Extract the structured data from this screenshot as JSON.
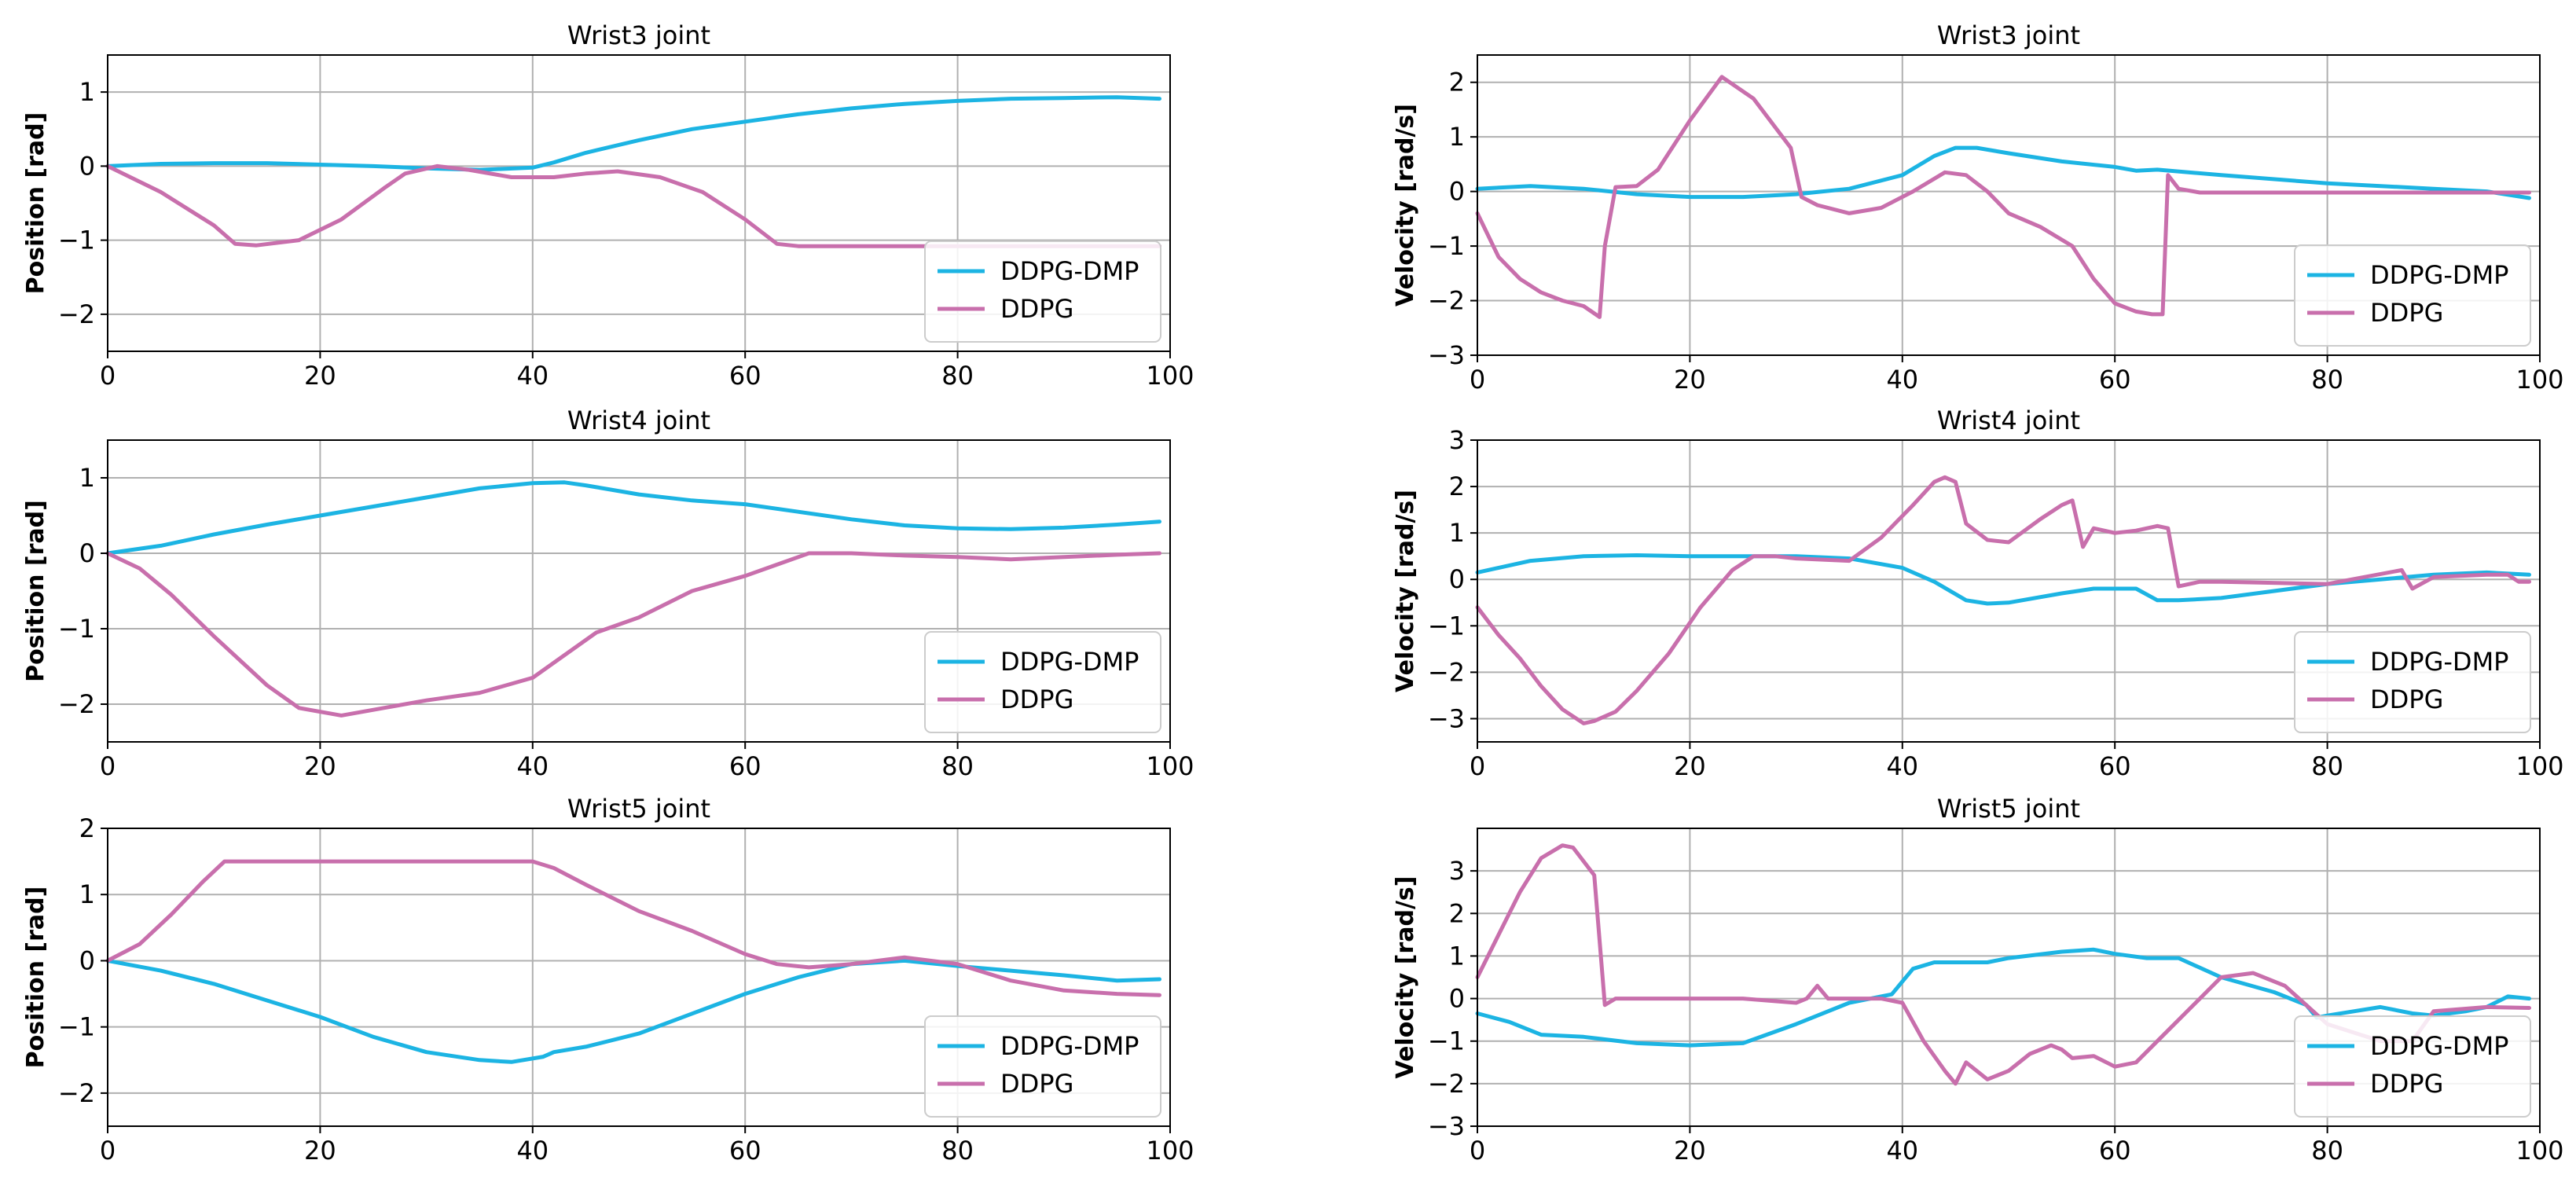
{
  "figure": {
    "series_colors": {
      "DDPG-DMP": "#1cb4e3",
      "DDPG": "#c86fac"
    },
    "grid_color": "#b0b0b0"
  },
  "chart_data": [
    {
      "type": "line",
      "title": "Wrist3 joint",
      "xlabel": "",
      "ylabel": "Position [rad]",
      "xlim": [
        0,
        100
      ],
      "ylim": [
        -2.5,
        1.5
      ],
      "xticks": [
        0,
        20,
        40,
        60,
        80,
        100
      ],
      "yticks": [
        -2,
        -1,
        0,
        1
      ],
      "grid": true,
      "legend": "lower right",
      "series": [
        {
          "name": "DDPG-DMP",
          "color": "#1cb4e3",
          "x": [
            0,
            5,
            10,
            15,
            20,
            25,
            30,
            35,
            40,
            42,
            45,
            50,
            55,
            60,
            65,
            70,
            75,
            80,
            85,
            90,
            95,
            99
          ],
          "y": [
            0,
            0.03,
            0.04,
            0.04,
            0.02,
            0,
            -0.03,
            -0.05,
            -0.02,
            0.05,
            0.18,
            0.35,
            0.5,
            0.6,
            0.7,
            0.78,
            0.84,
            0.88,
            0.91,
            0.92,
            0.93,
            0.91
          ]
        },
        {
          "name": "DDPG",
          "color": "#c86fac",
          "x": [
            0,
            5,
            10,
            12,
            14,
            18,
            22,
            26,
            28,
            31,
            34,
            38,
            42,
            45,
            48,
            52,
            56,
            60,
            63,
            65,
            70,
            80,
            90,
            99
          ],
          "y": [
            0,
            -0.35,
            -0.8,
            -1.05,
            -1.07,
            -1.0,
            -0.72,
            -0.3,
            -0.1,
            0.0,
            -0.05,
            -0.15,
            -0.15,
            -0.1,
            -0.07,
            -0.15,
            -0.35,
            -0.72,
            -1.05,
            -1.08,
            -1.08,
            -1.08,
            -1.08,
            -1.08
          ]
        }
      ]
    },
    {
      "type": "line",
      "title": "Wrist3 joint",
      "xlabel": "",
      "ylabel": "Velocity [rad/s]",
      "xlim": [
        0,
        100
      ],
      "ylim": [
        -3,
        2.5
      ],
      "xticks": [
        0,
        20,
        40,
        60,
        80,
        100
      ],
      "yticks": [
        -3,
        -2,
        -1,
        0,
        1,
        2
      ],
      "grid": true,
      "legend": "lower right",
      "series": [
        {
          "name": "DDPG-DMP",
          "color": "#1cb4e3",
          "x": [
            0,
            5,
            10,
            15,
            20,
            25,
            30,
            35,
            40,
            43,
            45,
            47,
            50,
            55,
            60,
            62,
            64,
            70,
            80,
            90,
            95,
            99
          ],
          "y": [
            0.05,
            0.1,
            0.05,
            -0.05,
            -0.1,
            -0.1,
            -0.05,
            0.05,
            0.3,
            0.65,
            0.8,
            0.8,
            0.7,
            0.55,
            0.45,
            0.38,
            0.4,
            0.3,
            0.15,
            0.05,
            0.0,
            -0.12
          ]
        },
        {
          "name": "DDPG",
          "color": "#c86fac",
          "x": [
            0,
            2,
            4,
            6,
            8,
            10,
            11.5,
            12,
            13,
            15,
            17,
            20,
            23,
            26,
            29.5,
            30.5,
            32,
            35,
            38,
            41,
            44,
            46,
            48,
            50,
            53,
            56,
            58,
            60,
            62,
            63.5,
            64.5,
            65,
            66,
            68,
            70,
            80,
            90,
            99
          ],
          "y": [
            -0.4,
            -1.2,
            -1.6,
            -1.85,
            -2.0,
            -2.1,
            -2.3,
            -1.0,
            0.08,
            0.1,
            0.4,
            1.3,
            2.1,
            1.7,
            0.8,
            -0.1,
            -0.25,
            -0.4,
            -0.3,
            0.0,
            0.35,
            0.3,
            0.0,
            -0.4,
            -0.65,
            -1.0,
            -1.6,
            -2.05,
            -2.2,
            -2.25,
            -2.25,
            0.3,
            0.05,
            -0.02,
            -0.02,
            -0.02,
            -0.02,
            -0.02
          ]
        }
      ]
    },
    {
      "type": "line",
      "title": "Wrist4 joint",
      "xlabel": "",
      "ylabel": "Position [rad]",
      "xlim": [
        0,
        100
      ],
      "ylim": [
        -2.5,
        1.5
      ],
      "xticks": [
        0,
        20,
        40,
        60,
        80,
        100
      ],
      "yticks": [
        -2,
        -1,
        0,
        1
      ],
      "grid": true,
      "legend": "lower right",
      "series": [
        {
          "name": "DDPG-DMP",
          "color": "#1cb4e3",
          "x": [
            0,
            5,
            10,
            15,
            20,
            25,
            30,
            35,
            40,
            43,
            45,
            50,
            55,
            60,
            65,
            70,
            75,
            80,
            85,
            90,
            95,
            99
          ],
          "y": [
            0,
            0.1,
            0.25,
            0.38,
            0.5,
            0.62,
            0.74,
            0.86,
            0.93,
            0.94,
            0.9,
            0.78,
            0.7,
            0.65,
            0.55,
            0.45,
            0.37,
            0.33,
            0.32,
            0.34,
            0.38,
            0.42
          ]
        },
        {
          "name": "DDPG",
          "color": "#c86fac",
          "x": [
            0,
            3,
            6,
            10,
            15,
            18,
            22,
            26,
            30,
            35,
            40,
            43,
            46,
            50,
            55,
            60,
            63,
            66,
            70,
            75,
            80,
            85,
            90,
            95,
            99
          ],
          "y": [
            0,
            -0.2,
            -0.55,
            -1.1,
            -1.75,
            -2.05,
            -2.15,
            -2.05,
            -1.95,
            -1.85,
            -1.65,
            -1.35,
            -1.05,
            -0.85,
            -0.5,
            -0.3,
            -0.15,
            0.0,
            0.0,
            -0.03,
            -0.05,
            -0.08,
            -0.05,
            -0.02,
            0.0
          ]
        }
      ]
    },
    {
      "type": "line",
      "title": "Wrist4 joint",
      "xlabel": "",
      "ylabel": "Velocity [rad/s]",
      "xlim": [
        0,
        100
      ],
      "ylim": [
        -3.5,
        3
      ],
      "xticks": [
        0,
        20,
        40,
        60,
        80,
        100
      ],
      "yticks": [
        -3,
        -2,
        -1,
        0,
        1,
        2,
        3
      ],
      "grid": true,
      "legend": "lower right",
      "series": [
        {
          "name": "DDPG-DMP",
          "color": "#1cb4e3",
          "x": [
            0,
            5,
            10,
            15,
            20,
            25,
            30,
            35,
            40,
            43,
            46,
            48,
            50,
            55,
            58,
            60,
            62,
            64,
            66,
            70,
            80,
            85,
            90,
            95,
            99
          ],
          "y": [
            0.15,
            0.4,
            0.5,
            0.52,
            0.5,
            0.5,
            0.5,
            0.45,
            0.25,
            -0.05,
            -0.45,
            -0.52,
            -0.5,
            -0.3,
            -0.2,
            -0.2,
            -0.2,
            -0.45,
            -0.45,
            -0.4,
            -0.1,
            0.0,
            0.1,
            0.15,
            0.1
          ]
        },
        {
          "name": "DDPG",
          "color": "#c86fac",
          "x": [
            0,
            2,
            4,
            6,
            8,
            10,
            11,
            13,
            15,
            18,
            21,
            24,
            26,
            28,
            30,
            35,
            38,
            41,
            43,
            44,
            45,
            46,
            48,
            50,
            53,
            55,
            56,
            57,
            58,
            60,
            62,
            64,
            65,
            66,
            68,
            70,
            80,
            87,
            88,
            90,
            95,
            97,
            98,
            99
          ],
          "y": [
            -0.6,
            -1.2,
            -1.7,
            -2.3,
            -2.8,
            -3.1,
            -3.05,
            -2.85,
            -2.4,
            -1.6,
            -0.6,
            0.2,
            0.5,
            0.5,
            0.45,
            0.4,
            0.9,
            1.6,
            2.1,
            2.2,
            2.1,
            1.2,
            0.85,
            0.8,
            1.3,
            1.6,
            1.7,
            0.7,
            1.1,
            1.0,
            1.05,
            1.15,
            1.1,
            -0.15,
            -0.05,
            -0.05,
            -0.1,
            0.2,
            -0.2,
            0.05,
            0.1,
            0.1,
            -0.05,
            -0.05
          ]
        }
      ]
    },
    {
      "type": "line",
      "title": "Wrist5 joint",
      "xlabel": "",
      "ylabel": "Position [rad]",
      "xlim": [
        0,
        100
      ],
      "ylim": [
        -2.5,
        2
      ],
      "xticks": [
        0,
        20,
        40,
        60,
        80,
        100
      ],
      "yticks": [
        -2,
        -1,
        0,
        1,
        2
      ],
      "grid": true,
      "legend": "lower right",
      "series": [
        {
          "name": "DDPG-DMP",
          "color": "#1cb4e3",
          "x": [
            0,
            5,
            10,
            15,
            20,
            25,
            30,
            35,
            38,
            41,
            42,
            45,
            50,
            55,
            60,
            65,
            70,
            75,
            80,
            85,
            90,
            95,
            99
          ],
          "y": [
            0,
            -0.15,
            -0.35,
            -0.6,
            -0.85,
            -1.15,
            -1.38,
            -1.5,
            -1.53,
            -1.45,
            -1.38,
            -1.3,
            -1.1,
            -0.8,
            -0.5,
            -0.25,
            -0.05,
            0.0,
            -0.08,
            -0.15,
            -0.22,
            -0.3,
            -0.28
          ]
        },
        {
          "name": "DDPG",
          "color": "#c86fac",
          "x": [
            0,
            3,
            6,
            9,
            11,
            13,
            20,
            30,
            35,
            40,
            42,
            45,
            50,
            55,
            60,
            63,
            66,
            70,
            75,
            80,
            85,
            90,
            95,
            99
          ],
          "y": [
            0,
            0.25,
            0.7,
            1.2,
            1.5,
            1.5,
            1.5,
            1.5,
            1.5,
            1.5,
            1.4,
            1.15,
            0.75,
            0.45,
            0.1,
            -0.05,
            -0.1,
            -0.05,
            0.05,
            -0.05,
            -0.3,
            -0.45,
            -0.5,
            -0.52
          ]
        }
      ]
    },
    {
      "type": "line",
      "title": "Wrist5 joint",
      "xlabel": "",
      "ylabel": "Velocity [rad/s]",
      "xlim": [
        0,
        100
      ],
      "ylim": [
        -3,
        4
      ],
      "xticks": [
        0,
        20,
        40,
        60,
        80,
        100
      ],
      "yticks": [
        -3,
        -2,
        -1,
        0,
        1,
        2,
        3
      ],
      "grid": true,
      "legend": "lower right",
      "series": [
        {
          "name": "DDPG-DMP",
          "color": "#1cb4e3",
          "x": [
            0,
            3,
            6,
            10,
            15,
            20,
            25,
            30,
            35,
            39,
            41,
            43,
            45,
            48,
            50,
            55,
            58,
            60,
            63,
            66,
            70,
            75,
            78,
            79,
            80,
            85,
            88,
            90,
            93,
            95,
            97,
            99
          ],
          "y": [
            -0.35,
            -0.55,
            -0.85,
            -0.9,
            -1.05,
            -1.1,
            -1.05,
            -0.6,
            -0.1,
            0.1,
            0.7,
            0.85,
            0.85,
            0.85,
            0.95,
            1.1,
            1.15,
            1.05,
            0.95,
            0.95,
            0.5,
            0.15,
            -0.15,
            -0.45,
            -0.4,
            -0.2,
            -0.35,
            -0.4,
            -0.3,
            -0.2,
            0.05,
            0.0
          ]
        },
        {
          "name": "DDPG",
          "color": "#c86fac",
          "x": [
            0,
            2,
            4,
            6,
            8,
            9,
            11,
            12,
            13,
            15,
            20,
            25,
            30,
            31,
            32,
            33,
            35,
            38,
            40,
            42,
            44,
            45,
            46,
            48,
            50,
            52,
            54,
            55,
            56,
            58,
            60,
            62,
            65,
            68,
            70,
            73,
            76,
            80,
            85,
            88,
            90,
            95,
            99
          ],
          "y": [
            0.5,
            1.5,
            2.5,
            3.3,
            3.6,
            3.55,
            2.9,
            -0.15,
            0.0,
            0.0,
            0.0,
            0.0,
            -0.1,
            0.0,
            0.3,
            0.0,
            0.0,
            0.0,
            -0.1,
            -1.0,
            -1.7,
            -2.0,
            -1.5,
            -1.9,
            -1.7,
            -1.3,
            -1.1,
            -1.2,
            -1.4,
            -1.35,
            -1.6,
            -1.5,
            -0.75,
            0.0,
            0.5,
            0.6,
            0.3,
            -0.6,
            -1.0,
            -1.0,
            -0.3,
            -0.2,
            -0.22
          ]
        }
      ]
    }
  ]
}
